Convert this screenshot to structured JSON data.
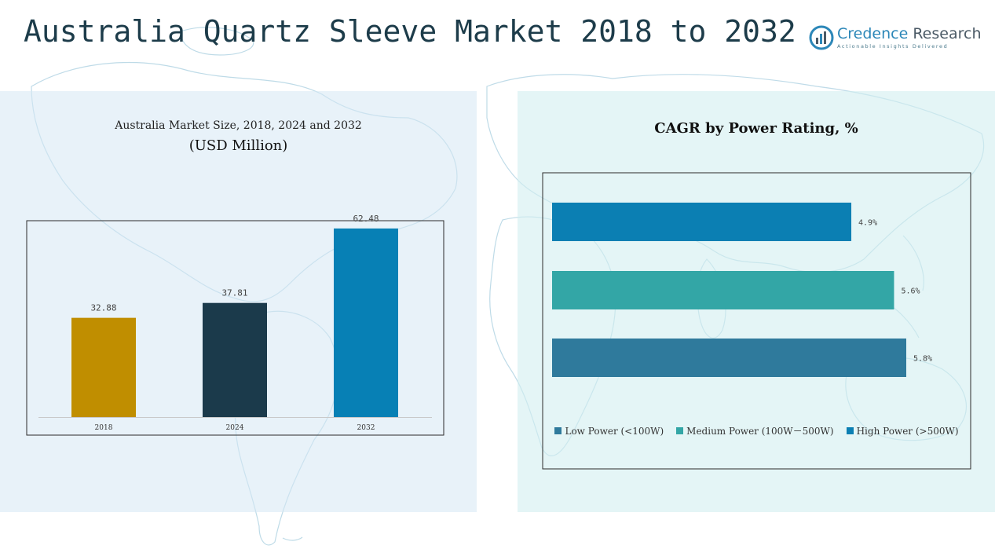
{
  "header": {
    "title": "Australia Quartz Sleeve Market 2018 to 2032",
    "logo_name_primary": "Credence",
    "logo_name_secondary": "Research",
    "logo_tagline": "Actionable Insights Delivered"
  },
  "colors": {
    "title": "#1d3c4a",
    "bar_2018": "#c08e00",
    "bar_2024": "#1b3a4b",
    "bar_2032": "#0780b5",
    "low_power": "#2f7a9c",
    "medium_power": "#33a6a6",
    "high_power": "#0b7fb3"
  },
  "chart_data": [
    {
      "type": "bar",
      "title": "Australia Market Size, 2018, 2024 and 2032",
      "subtitle": "(USD Million)",
      "categories": [
        "2018",
        "2024",
        "2032"
      ],
      "values": [
        32.88,
        37.81,
        62.48
      ],
      "value_labels": [
        "32.88",
        "37.81",
        "62.48"
      ],
      "ylim": [
        0,
        70
      ],
      "grid": false,
      "bar_colors": [
        "#c08e00",
        "#1b3a4b",
        "#0780b5"
      ]
    },
    {
      "type": "bar",
      "orientation": "horizontal",
      "title": "CAGR by Power Rating, %",
      "series": [
        {
          "name": "High Power (>500W)",
          "value": 4.9,
          "label": "4.9%",
          "color": "#0b7fb3"
        },
        {
          "name": "Medium Power (100W–500W)",
          "value": 5.6,
          "label": "5.6%",
          "color": "#33a6a6"
        },
        {
          "name": "Low Power (<100W)",
          "value": 5.8,
          "label": "5.8%",
          "color": "#2f7a9c"
        }
      ],
      "legend_order": [
        "Low Power (<100W)",
        "Medium Power (100W–500W)",
        "High Power (>500W)"
      ],
      "legend_labels": [
        "Low Power (<100W)",
        "Medium Power (100W－500W)",
        "High Power (>500W)"
      ],
      "xlim": [
        0,
        6.8
      ],
      "legend_position": "bottom",
      "grid": false
    }
  ]
}
